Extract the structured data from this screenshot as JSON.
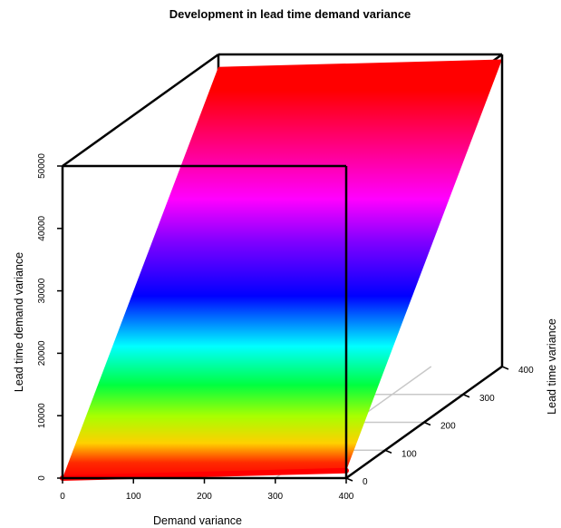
{
  "chart_data": {
    "type": "surface-3d",
    "title": "Development in lead time demand variance",
    "xlabel": "Demand variance",
    "ylabel": "Lead time variance",
    "zlabel": "Lead time demand variance",
    "x_ticks": [
      0,
      100,
      200,
      300,
      400
    ],
    "y_ticks": [
      0,
      100,
      200,
      300,
      400
    ],
    "z_ticks": [
      0,
      10000,
      20000,
      30000,
      40000,
      50000
    ],
    "xlim": [
      0,
      400
    ],
    "ylim": [
      0,
      400
    ],
    "zlim": [
      0,
      50000
    ],
    "colormap": "rainbow (red-yellow-green-cyan-blue-magenta-red)",
    "surface_corners": [
      {
        "x": 0,
        "y": 0,
        "z": 0
      },
      {
        "x": 400,
        "y": 0,
        "z": 1200
      },
      {
        "x": 0,
        "y": 400,
        "z": 48000
      },
      {
        "x": 400,
        "y": 400,
        "z": 49200
      }
    ]
  }
}
